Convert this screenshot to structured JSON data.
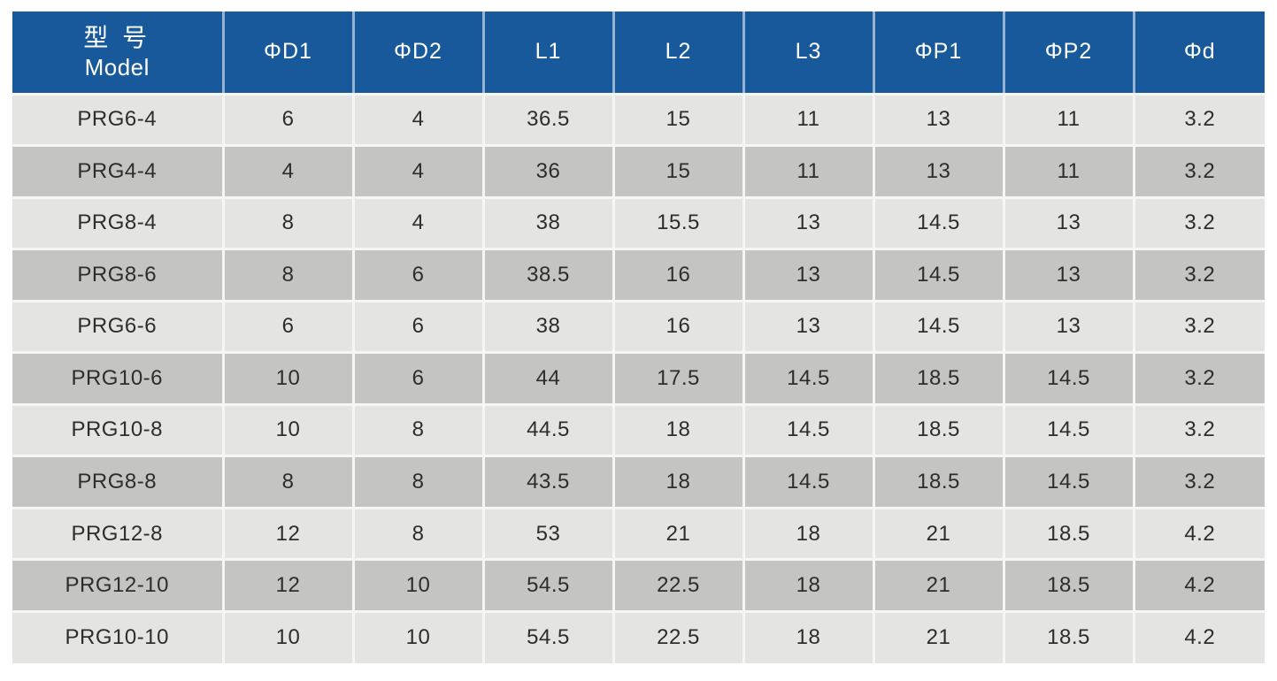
{
  "colors": {
    "header_bg": "#17599a",
    "header_text": "#ffffff",
    "row_light": "#e4e4e2",
    "row_dark": "#c4c4c3",
    "grid_line": "#f6f6f4",
    "cell_text": "#2d2d2d"
  },
  "table": {
    "header": {
      "model_zh": "型 号",
      "model_en": "Model",
      "cols": [
        "ΦD1",
        "ΦD2",
        "L1",
        "L2",
        "L3",
        "ΦP1",
        "ΦP2",
        "Φd"
      ]
    },
    "rows": [
      {
        "model": "PRG6-4",
        "values": [
          "6",
          "4",
          "36.5",
          "15",
          "11",
          "13",
          "11",
          "3.2"
        ]
      },
      {
        "model": "PRG4-4",
        "values": [
          "4",
          "4",
          "36",
          "15",
          "11",
          "13",
          "11",
          "3.2"
        ]
      },
      {
        "model": "PRG8-4",
        "values": [
          "8",
          "4",
          "38",
          "15.5",
          "13",
          "14.5",
          "13",
          "3.2"
        ]
      },
      {
        "model": "PRG8-6",
        "values": [
          "8",
          "6",
          "38.5",
          "16",
          "13",
          "14.5",
          "13",
          "3.2"
        ]
      },
      {
        "model": "PRG6-6",
        "values": [
          "6",
          "6",
          "38",
          "16",
          "13",
          "14.5",
          "13",
          "3.2"
        ]
      },
      {
        "model": "PRG10-6",
        "values": [
          "10",
          "6",
          "44",
          "17.5",
          "14.5",
          "18.5",
          "14.5",
          "3.2"
        ]
      },
      {
        "model": "PRG10-8",
        "values": [
          "10",
          "8",
          "44.5",
          "18",
          "14.5",
          "18.5",
          "14.5",
          "3.2"
        ]
      },
      {
        "model": "PRG8-8",
        "values": [
          "8",
          "8",
          "43.5",
          "18",
          "14.5",
          "18.5",
          "14.5",
          "3.2"
        ]
      },
      {
        "model": "PRG12-8",
        "values": [
          "12",
          "8",
          "53",
          "21",
          "18",
          "21",
          "18.5",
          "4.2"
        ]
      },
      {
        "model": "PRG12-10",
        "values": [
          "12",
          "10",
          "54.5",
          "22.5",
          "18",
          "21",
          "18.5",
          "4.2"
        ]
      },
      {
        "model": "PRG10-10",
        "values": [
          "10",
          "10",
          "54.5",
          "22.5",
          "18",
          "21",
          "18.5",
          "4.2"
        ]
      }
    ]
  }
}
